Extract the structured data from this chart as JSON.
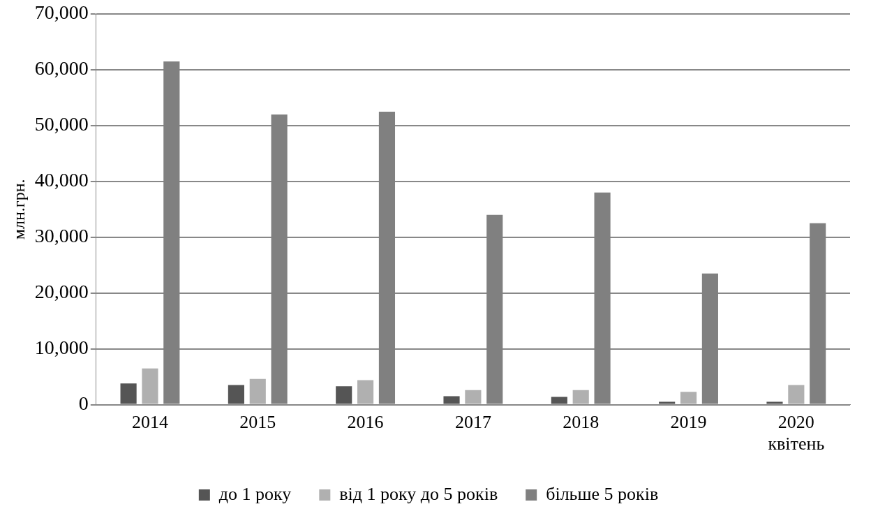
{
  "chart_data": {
    "type": "bar",
    "ylabel": "млн.грн.",
    "categories": [
      "2014",
      "2015",
      "2016",
      "2017",
      "2018",
      "2019",
      "2020\nквітень"
    ],
    "series": [
      {
        "name": "до 1 року",
        "color": "#555555",
        "values": [
          3800,
          3500,
          3300,
          1500,
          1400,
          500,
          500
        ]
      },
      {
        "name": "від 1 року до 5 років",
        "color": "#b0b0b0",
        "values": [
          6500,
          4600,
          4400,
          2600,
          2600,
          2300,
          3500
        ]
      },
      {
        "name": "більше 5 років",
        "color": "#808080",
        "values": [
          61500,
          52000,
          52500,
          34000,
          38000,
          23500,
          32500
        ]
      }
    ],
    "ylim": [
      0,
      70000
    ],
    "yticks": [
      {
        "value": 0,
        "label": "0"
      },
      {
        "value": 10000,
        "label": "10,000"
      },
      {
        "value": 20000,
        "label": "20,000"
      },
      {
        "value": 30000,
        "label": "30,000"
      },
      {
        "value": 40000,
        "label": "40,000"
      },
      {
        "value": 50000,
        "label": "50,000"
      },
      {
        "value": 60000,
        "label": "60,000"
      },
      {
        "value": 70000,
        "label": "70,000"
      }
    ],
    "grid": "y",
    "legend": "bottom"
  }
}
